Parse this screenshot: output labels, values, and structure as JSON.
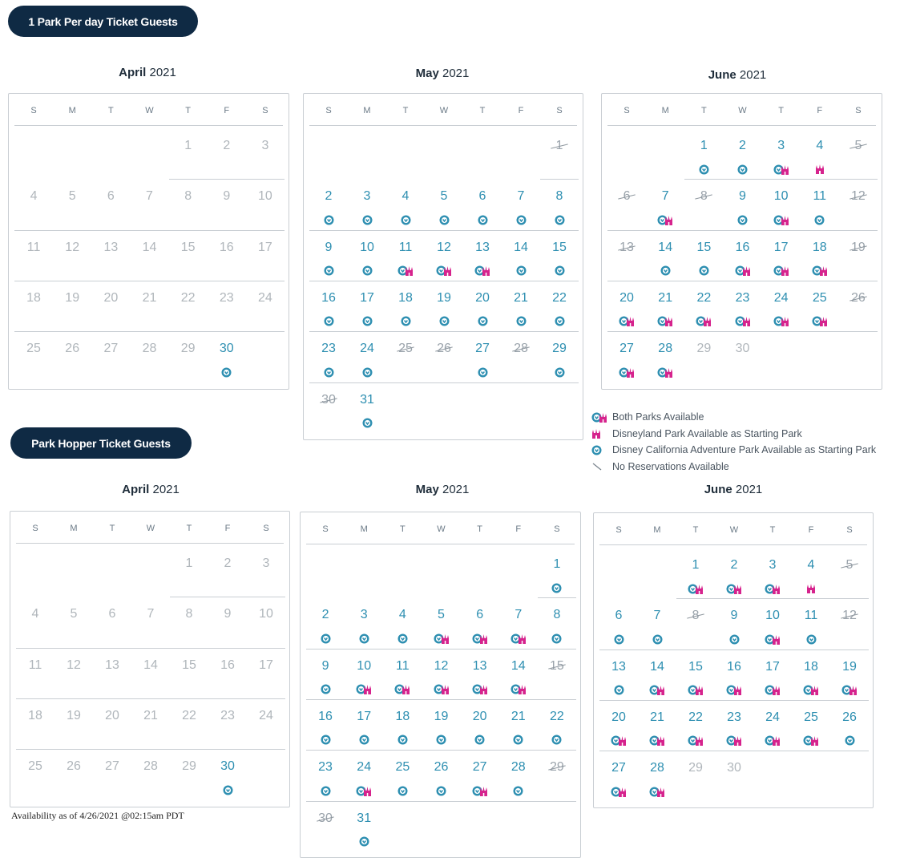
{
  "sections": [
    {
      "title": "1 Park Per day Ticket Guests",
      "months": [
        {
          "month": "April",
          "year": "2021",
          "start": 4,
          "days": 30,
          "past": [
            1,
            2,
            3,
            4,
            5,
            6,
            7,
            8,
            9,
            10,
            11,
            12,
            13,
            14,
            15,
            16,
            17,
            18,
            19,
            20,
            21,
            22,
            23,
            24,
            25,
            26,
            27,
            28,
            29
          ],
          "none": [],
          "both": [],
          "dl": [],
          "dca": [
            30
          ]
        },
        {
          "month": "May",
          "year": "2021",
          "start": 6,
          "days": 31,
          "past": [],
          "none": [
            1,
            25,
            26,
            28,
            30
          ],
          "both": [
            11,
            12,
            13
          ],
          "dl": [],
          "dca": [
            2,
            3,
            4,
            5,
            6,
            7,
            8,
            9,
            10,
            14,
            15,
            16,
            17,
            18,
            19,
            20,
            21,
            22,
            23,
            24,
            27,
            29,
            31
          ]
        },
        {
          "month": "June",
          "year": "2021",
          "start": 2,
          "days": 30,
          "past": [
            29,
            30
          ],
          "none": [
            5,
            6,
            8,
            12,
            13,
            19,
            26
          ],
          "both": [
            3,
            7,
            10,
            16,
            17,
            18,
            20,
            21,
            22,
            23,
            24,
            25,
            27,
            28
          ],
          "dl": [
            4
          ],
          "dca": [
            1,
            2,
            9,
            11,
            14,
            15
          ]
        }
      ]
    },
    {
      "title": "Park Hopper Ticket Guests",
      "months": [
        {
          "month": "April",
          "year": "2021",
          "start": 4,
          "days": 30,
          "past": [
            1,
            2,
            3,
            4,
            5,
            6,
            7,
            8,
            9,
            10,
            11,
            12,
            13,
            14,
            15,
            16,
            17,
            18,
            19,
            20,
            21,
            22,
            23,
            24,
            25,
            26,
            27,
            28,
            29
          ],
          "none": [],
          "both": [],
          "dl": [],
          "dca": [
            30
          ]
        },
        {
          "month": "May",
          "year": "2021",
          "start": 6,
          "days": 31,
          "past": [],
          "none": [
            15,
            29,
            30
          ],
          "both": [
            5,
            6,
            7,
            10,
            11,
            12,
            13,
            14,
            24,
            27
          ],
          "dl": [],
          "dca": [
            1,
            2,
            3,
            4,
            8,
            9,
            16,
            17,
            18,
            19,
            20,
            21,
            22,
            23,
            25,
            26,
            28,
            31
          ]
        },
        {
          "month": "June",
          "year": "2021",
          "start": 2,
          "days": 30,
          "past": [
            29,
            30
          ],
          "none": [
            5,
            8,
            12
          ],
          "both": [
            1,
            2,
            3,
            10,
            14,
            15,
            16,
            17,
            18,
            19,
            20,
            21,
            22,
            23,
            24,
            25,
            27,
            28
          ],
          "dl": [
            4
          ],
          "dca": [
            6,
            7,
            9,
            11,
            13,
            26
          ]
        }
      ]
    }
  ],
  "weekdays": [
    "S",
    "M",
    "T",
    "W",
    "T",
    "F",
    "S"
  ],
  "legend": [
    {
      "icon": "both",
      "label": "Both Parks Available"
    },
    {
      "icon": "dl",
      "label": "Disneyland Park Available as Starting Park"
    },
    {
      "icon": "dca",
      "label": "Disney California Adventure Park Available as Starting Park"
    },
    {
      "icon": "none",
      "label": "No Reservations Available"
    }
  ],
  "footnote": "Availability as of 4/26/2021 @02:15am PDT",
  "colors": {
    "navy": "#0f2a44",
    "teal": "#2e8fb1",
    "pink": "#d6238d",
    "grey": "#b0b6bb"
  }
}
